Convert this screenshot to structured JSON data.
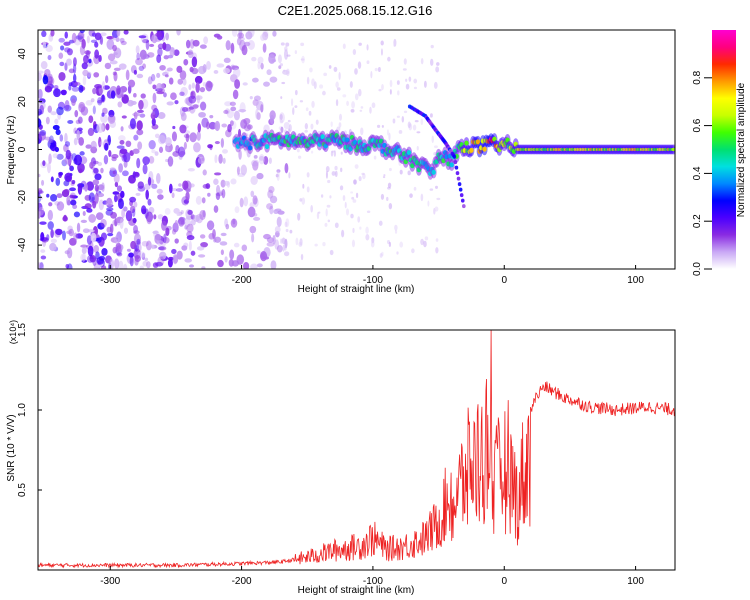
{
  "title": "C2E1.2025.068.15.12.G16",
  "chart_data": [
    {
      "type": "heatmap",
      "xlabel": "Height of straight line (km)",
      "ylabel": "Frequency (Hz)",
      "xlim": [
        -355,
        130
      ],
      "ylim": [
        -50,
        50
      ],
      "xticks": [
        -300,
        -200,
        -100,
        0,
        100
      ],
      "yticks": [
        -40,
        -20,
        0,
        20,
        40
      ],
      "colorbar": {
        "label": "Normalized spectral amplitude",
        "range": [
          0,
          1
        ],
        "ticks": [
          0.0,
          0.2,
          0.4,
          0.6,
          0.8
        ],
        "colors": [
          "#ffffff",
          "#c9a8f5",
          "#8a2be2",
          "#4b00ff",
          "#0000ff",
          "#0088ff",
          "#00e0e0",
          "#00e070",
          "#40ff00",
          "#c8ff00",
          "#ffff00",
          "#ff9900",
          "#ff2a00",
          "#ff007f",
          "#ff00d0"
        ]
      },
      "ridge": [
        {
          "x": -205,
          "y": 3,
          "a": 0.35
        },
        {
          "x": -190,
          "y": 3,
          "a": 0.4
        },
        {
          "x": -170,
          "y": 4,
          "a": 0.45
        },
        {
          "x": -150,
          "y": 3,
          "a": 0.45
        },
        {
          "x": -130,
          "y": 4,
          "a": 0.45
        },
        {
          "x": -110,
          "y": 2,
          "a": 0.45
        },
        {
          "x": -95,
          "y": 2,
          "a": 0.45
        },
        {
          "x": -85,
          "y": -1,
          "a": 0.45
        },
        {
          "x": -75,
          "y": -3,
          "a": 0.45
        },
        {
          "x": -65,
          "y": -6,
          "a": 0.45
        },
        {
          "x": -55,
          "y": -10,
          "a": 0.4
        },
        {
          "x": -50,
          "y": -3,
          "a": 0.45
        },
        {
          "x": -40,
          "y": -4,
          "a": 0.45
        },
        {
          "x": -30,
          "y": 2,
          "a": 0.6
        },
        {
          "x": -20,
          "y": 1,
          "a": 0.75
        },
        {
          "x": -10,
          "y": 2,
          "a": 0.8
        },
        {
          "x": 0,
          "y": 2,
          "a": 0.55
        },
        {
          "x": 10,
          "y": 0,
          "a": 0.65
        },
        {
          "x": 40,
          "y": 0,
          "a": 0.65
        },
        {
          "x": 80,
          "y": 0,
          "a": 0.65
        },
        {
          "x": 130,
          "y": 0,
          "a": 0.65
        }
      ],
      "branch": [
        {
          "x": -72,
          "y": 18
        },
        {
          "x": -60,
          "y": 14
        },
        {
          "x": -52,
          "y": 8
        },
        {
          "x": -45,
          "y": 3
        },
        {
          "x": -38,
          "y": -3
        },
        {
          "x": -30,
          "y": -26
        }
      ]
    },
    {
      "type": "line",
      "xlabel": "Height of straight line (km)",
      "ylabel": "SNR (10 * V/V)",
      "multiplier": "(x10⁴)",
      "xlim": [
        -355,
        130
      ],
      "ylim": [
        0,
        1.5
      ],
      "xticks": [
        -300,
        -200,
        -100,
        0,
        100
      ],
      "yticks": [
        0.5,
        1.0,
        1.5
      ],
      "color": "#ee2222",
      "envelope": [
        {
          "x": -355,
          "y": 0.03
        },
        {
          "x": -300,
          "y": 0.03
        },
        {
          "x": -250,
          "y": 0.03
        },
        {
          "x": -200,
          "y": 0.04
        },
        {
          "x": -170,
          "y": 0.05
        },
        {
          "x": -150,
          "y": 0.08
        },
        {
          "x": -130,
          "y": 0.12
        },
        {
          "x": -110,
          "y": 0.15
        },
        {
          "x": -100,
          "y": 0.2
        },
        {
          "x": -90,
          "y": 0.13
        },
        {
          "x": -75,
          "y": 0.15
        },
        {
          "x": -60,
          "y": 0.2
        },
        {
          "x": -50,
          "y": 0.3
        },
        {
          "x": -40,
          "y": 0.5
        },
        {
          "x": -32,
          "y": 0.75
        },
        {
          "x": -25,
          "y": 0.9
        },
        {
          "x": -18,
          "y": 0.95
        },
        {
          "x": -12,
          "y": 1.1
        },
        {
          "x": -8,
          "y": 0.7
        },
        {
          "x": -3,
          "y": 0.85
        },
        {
          "x": 3,
          "y": 0.9
        },
        {
          "x": 10,
          "y": 0.6
        },
        {
          "x": 15,
          "y": 0.85
        },
        {
          "x": 22,
          "y": 1.05
        },
        {
          "x": 30,
          "y": 1.15
        },
        {
          "x": 45,
          "y": 1.08
        },
        {
          "x": 65,
          "y": 1.02
        },
        {
          "x": 85,
          "y": 1.0
        },
        {
          "x": 110,
          "y": 1.02
        },
        {
          "x": 130,
          "y": 1.0
        }
      ],
      "peak": {
        "x": -10,
        "y": 1.5
      }
    }
  ]
}
